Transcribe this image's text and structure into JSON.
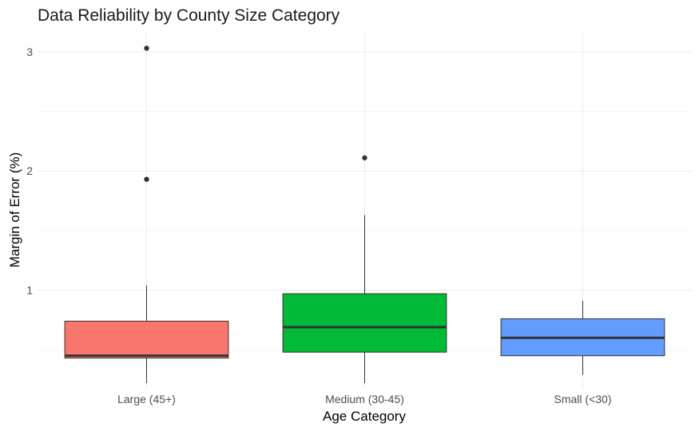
{
  "chart_data": {
    "type": "boxplot",
    "title": "Data Reliability by County Size Category",
    "xlabel": "Age Category",
    "ylabel": "Margin of Error (%)",
    "ylim": [
      0.18,
      3.18
    ],
    "yticks": [
      1,
      2,
      3
    ],
    "ytick_labels": [
      "1",
      "2",
      "3"
    ],
    "grid": true,
    "legend": "none",
    "categories": [
      "Large (45+)",
      "Medium (30-45)",
      "Small (<30)"
    ],
    "boxes": [
      {
        "category": "Large (45+)",
        "color": "#F8766D",
        "whisker_low": 0.22,
        "q1": 0.43,
        "median": 0.45,
        "q3": 0.74,
        "whisker_high": 1.04,
        "outliers": [
          1.93,
          3.03
        ]
      },
      {
        "category": "Medium (30-45)",
        "color": "#00BA38",
        "whisker_low": 0.22,
        "q1": 0.48,
        "median": 0.69,
        "q3": 0.97,
        "whisker_high": 1.63,
        "outliers": [
          2.11
        ]
      },
      {
        "category": "Small (<30)",
        "color": "#619CFF",
        "whisker_low": 0.29,
        "q1": 0.45,
        "median": 0.6,
        "q3": 0.76,
        "whisker_high": 0.91,
        "outliers": []
      }
    ]
  }
}
